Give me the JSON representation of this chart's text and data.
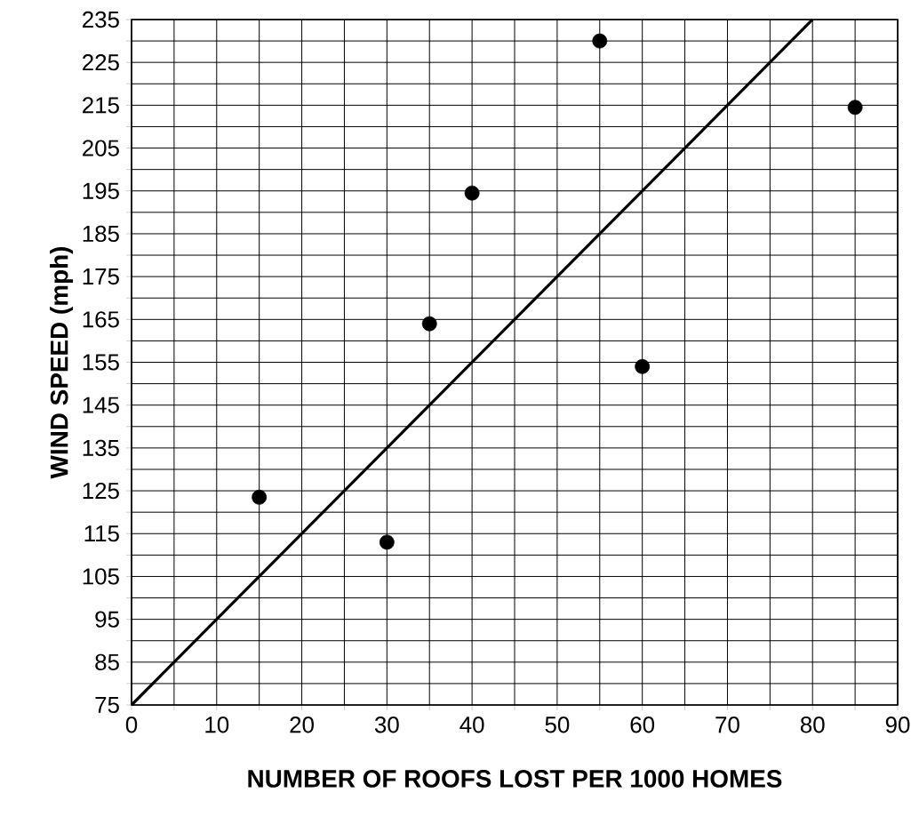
{
  "chart_data": {
    "type": "scatter",
    "xlabel": "NUMBER OF ROOFS LOST PER 1000 HOMES",
    "ylabel": "WIND SPEED (mph)",
    "xlim": [
      0,
      90
    ],
    "ylim": [
      75,
      235
    ],
    "xticks": [
      0,
      {
        "value": 5,
        "label": null
      },
      10,
      {
        "value": 15,
        "label": null
      },
      20,
      {
        "value": 25,
        "label": null
      },
      30,
      {
        "value": 35,
        "label": null
      },
      40,
      {
        "value": 45,
        "label": null
      },
      50,
      {
        "value": 55,
        "label": null
      },
      60,
      {
        "value": 65,
        "label": null
      },
      70,
      {
        "value": 75,
        "label": null
      },
      80,
      {
        "value": 85,
        "label": null
      },
      90
    ],
    "yticks": [
      75,
      {
        "value": 80,
        "label": null
      },
      85,
      {
        "value": 90,
        "label": null
      },
      95,
      {
        "value": 100,
        "label": null
      },
      105,
      {
        "value": 110,
        "label": null
      },
      115,
      {
        "value": 120,
        "label": null
      },
      125,
      {
        "value": 130,
        "label": null
      },
      135,
      {
        "value": 140,
        "label": null
      },
      145,
      {
        "value": 150,
        "label": null
      },
      155,
      {
        "value": 160,
        "label": null
      },
      165,
      {
        "value": 170,
        "label": null
      },
      175,
      {
        "value": 180,
        "label": null
      },
      185,
      {
        "value": 190,
        "label": null
      },
      195,
      {
        "value": 200,
        "label": null
      },
      205,
      {
        "value": 210,
        "label": null
      },
      215,
      {
        "value": 220,
        "label": null
      },
      225,
      {
        "value": 230,
        "label": null
      },
      235
    ],
    "grid": true,
    "series": [
      {
        "color": "#000000",
        "marker": "circle",
        "x": [
          15,
          30,
          35,
          40,
          55,
          60,
          85
        ],
        "values": [
          123.5,
          113,
          164,
          194.5,
          230,
          154,
          214.5
        ]
      },
      {
        "type": "line",
        "color": "#000000",
        "marker": "none",
        "line_style": "solid",
        "x": [
          0,
          80
        ],
        "values": [
          75,
          235
        ]
      }
    ]
  }
}
